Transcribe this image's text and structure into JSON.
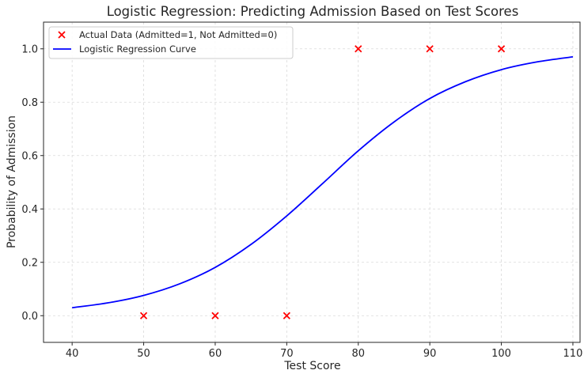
{
  "chart_data": {
    "type": "scatter",
    "title": "Logistic Regression: Predicting Admission Based on Test Scores",
    "xlabel": "Test Score",
    "ylabel": "Probability of Admission",
    "xlim": [
      36,
      111
    ],
    "ylim": [
      -0.1,
      1.1
    ],
    "xticks": [
      40,
      50,
      60,
      70,
      80,
      90,
      100,
      110
    ],
    "xtick_labels": [
      "40",
      "50",
      "60",
      "70",
      "80",
      "90",
      "100",
      "110"
    ],
    "yticks": [
      0.0,
      0.2,
      0.4,
      0.6,
      0.8,
      1.0
    ],
    "ytick_labels": [
      "0.0",
      "0.2",
      "0.4",
      "0.6",
      "0.8",
      "1.0"
    ],
    "grid": true,
    "legend_position": "top-left",
    "series": [
      {
        "name": "Actual Data (Admitted=1, Not Admitted=0)",
        "kind": "scatter",
        "marker": "x",
        "color": "#ff0000",
        "x": [
          50,
          60,
          70,
          80,
          90,
          100
        ],
        "y": [
          0,
          0,
          0,
          1,
          1,
          1
        ]
      },
      {
        "name": "Logistic Regression Curve",
        "kind": "line",
        "color": "#0000ff",
        "x": [
          40,
          45,
          50,
          55,
          60,
          65,
          70,
          75,
          80,
          85,
          90,
          95,
          100,
          105,
          110
        ],
        "y": [
          0.03,
          0.048,
          0.076,
          0.119,
          0.181,
          0.267,
          0.374,
          0.495,
          0.618,
          0.726,
          0.814,
          0.877,
          0.922,
          0.951,
          0.97
        ]
      }
    ]
  }
}
